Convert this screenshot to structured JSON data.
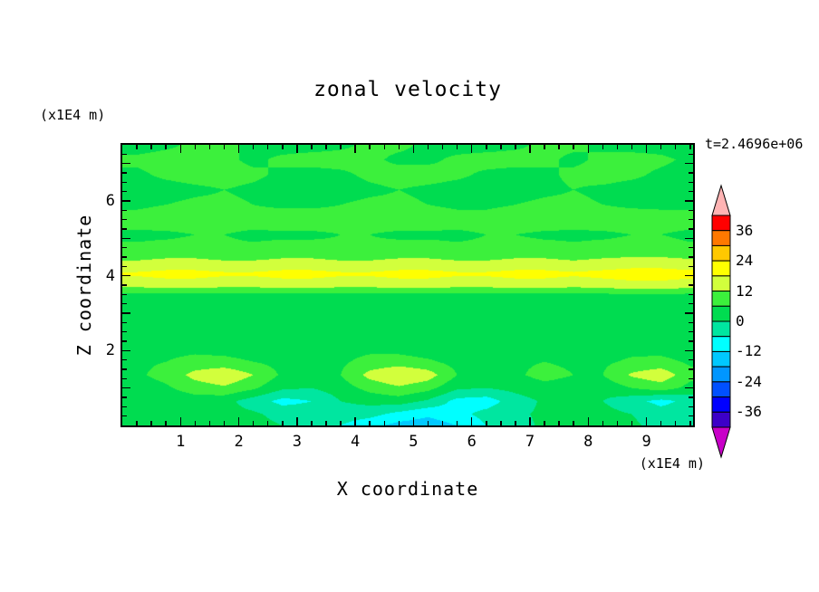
{
  "title": "zonal velocity",
  "annotations": {
    "time_label": "t=2.4696e+06",
    "y_axis_units": "(x1E4 m)",
    "x_axis_units": "(x1E4 m)"
  },
  "axes": {
    "x_label": "X coordinate",
    "y_label": "Z coordinate",
    "x_ticks": [
      "1",
      "2",
      "3",
      "4",
      "5",
      "6",
      "7",
      "8",
      "9"
    ],
    "y_ticks": [
      "2",
      "4",
      "6"
    ]
  },
  "chart_data": {
    "type": "heatmap",
    "subtype": "filled-contour",
    "title": "zonal velocity",
    "xlabel": "X coordinate (x1E4 m)",
    "ylabel": "Z coordinate (x1E4 m)",
    "time_annotation": "t=2.4696e+06",
    "x_range": [
      0,
      9.8
    ],
    "z_range": [
      0,
      7.5
    ],
    "x_tick_values": [
      1,
      2,
      3,
      4,
      5,
      6,
      7,
      8,
      9
    ],
    "z_tick_values": [
      2,
      4,
      6
    ],
    "levels": {
      "min": -42,
      "step": 6,
      "count": 14
    },
    "palette": [
      "#3c00c8",
      "#0000ff",
      "#0050ff",
      "#0096ff",
      "#00c8ff",
      "#00ffff",
      "#00e6a0",
      "#00dc50",
      "#3cf03c",
      "#d2ff3c",
      "#ffff00",
      "#ffc800",
      "#ff7800",
      "#ff0000"
    ],
    "under_color": "#c800c8",
    "over_color": "#ffb4b4",
    "colorbar_labels": [
      "36",
      "24",
      "12",
      "0",
      "-12",
      "-24",
      "-36"
    ],
    "x": [
      0.25,
      0.75,
      1.25,
      1.75,
      2.25,
      2.75,
      3.25,
      3.75,
      4.25,
      4.75,
      5.25,
      5.75,
      6.25,
      6.75,
      7.25,
      7.75,
      8.25,
      8.75,
      9.25,
      9.75
    ],
    "z": [
      7.5,
      7.1,
      6.7,
      6.3,
      5.9,
      5.5,
      5.1,
      4.7,
      4.35,
      4.05,
      3.75,
      3.5,
      3.1,
      2.6,
      2.1,
      1.7,
      1.35,
      1.0,
      0.65,
      0.3,
      0.0
    ],
    "values": [
      [
        4,
        5,
        7,
        7,
        5,
        4,
        4,
        5,
        7,
        7,
        5,
        4,
        4,
        5,
        7,
        7,
        5,
        4,
        4,
        4
      ],
      [
        7,
        8,
        8,
        7,
        5,
        7,
        8,
        8,
        7,
        5,
        5,
        7,
        8,
        8,
        7,
        5,
        7,
        8,
        7,
        5
      ],
      [
        5,
        7,
        8,
        8,
        7,
        5,
        4,
        5,
        7,
        8,
        8,
        7,
        5,
        4,
        5,
        7,
        8,
        7,
        5,
        4
      ],
      [
        4,
        4,
        5,
        6,
        5,
        4,
        4,
        4,
        5,
        6,
        5,
        4,
        4,
        4,
        5,
        6,
        5,
        4,
        4,
        4
      ],
      [
        5,
        6,
        7,
        7,
        6,
        5,
        5,
        6,
        7,
        7,
        6,
        5,
        5,
        6,
        7,
        7,
        6,
        5,
        5,
        5
      ],
      [
        8,
        9,
        9,
        8,
        8,
        9,
        9,
        8,
        8,
        9,
        9,
        8,
        8,
        9,
        9,
        8,
        9,
        9,
        8,
        8
      ],
      [
        5,
        5,
        6,
        6,
        5,
        5,
        5,
        6,
        6,
        5,
        5,
        5,
        6,
        6,
        5,
        5,
        5,
        6,
        6,
        5
      ],
      [
        7,
        8,
        8,
        7,
        7,
        8,
        8,
        7,
        7,
        8,
        8,
        7,
        7,
        8,
        8,
        7,
        8,
        8,
        8,
        7
      ],
      [
        13,
        14,
        14,
        13,
        13,
        14,
        14,
        13,
        13,
        14,
        14,
        13,
        13,
        14,
        14,
        13,
        14,
        15,
        15,
        14
      ],
      [
        19,
        20,
        20,
        19,
        19,
        20,
        20,
        19,
        19,
        20,
        20,
        19,
        19,
        20,
        20,
        19,
        20,
        21,
        21,
        20
      ],
      [
        14,
        15,
        15,
        14,
        14,
        15,
        15,
        14,
        14,
        15,
        15,
        14,
        14,
        15,
        15,
        14,
        15,
        16,
        16,
        15
      ],
      [
        5,
        5,
        5,
        5,
        5,
        5,
        5,
        5,
        5,
        5,
        5,
        5,
        5,
        5,
        5,
        5,
        5,
        6,
        6,
        5
      ],
      [
        3,
        3,
        2,
        2,
        3,
        3,
        3,
        3,
        3,
        3,
        3,
        3,
        3,
        3,
        3,
        3,
        3,
        3,
        3,
        3
      ],
      [
        4,
        4,
        4,
        4,
        4,
        4,
        4,
        4,
        4,
        4,
        4,
        4,
        4,
        4,
        4,
        4,
        4,
        4,
        4,
        4
      ],
      [
        3,
        4,
        4,
        3,
        2,
        2,
        3,
        4,
        4,
        3,
        2,
        3,
        4,
        4,
        3,
        2,
        3,
        4,
        3,
        2
      ],
      [
        5,
        6,
        8,
        8,
        6,
        4,
        4,
        5,
        8,
        9,
        7,
        4,
        4,
        5,
        6,
        5,
        5,
        7,
        8,
        5
      ],
      [
        5,
        8,
        14,
        17,
        12,
        5,
        4,
        6,
        14,
        18,
        15,
        6,
        4,
        5,
        8,
        6,
        6,
        13,
        16,
        8
      ],
      [
        3,
        5,
        9,
        11,
        7,
        1,
        0,
        3,
        8,
        11,
        8,
        1,
        0,
        2,
        4,
        3,
        2,
        6,
        9,
        4
      ],
      [
        0,
        2,
        3,
        2,
        -3,
        -8,
        -6,
        0,
        2,
        3,
        -1,
        -8,
        -9,
        -3,
        1,
        2,
        0,
        -4,
        -8,
        -4
      ],
      [
        2,
        3,
        3,
        2,
        1,
        -2,
        -3,
        -3,
        -4,
        -8,
        -11,
        -8,
        -4,
        -1,
        1,
        2,
        2,
        0,
        -3,
        -2
      ],
      [
        2,
        3,
        3,
        3,
        2,
        0,
        -3,
        -6,
        -10,
        -14,
        -15,
        -12,
        -6,
        -2,
        1,
        3,
        3,
        1,
        -2,
        -2
      ]
    ]
  }
}
